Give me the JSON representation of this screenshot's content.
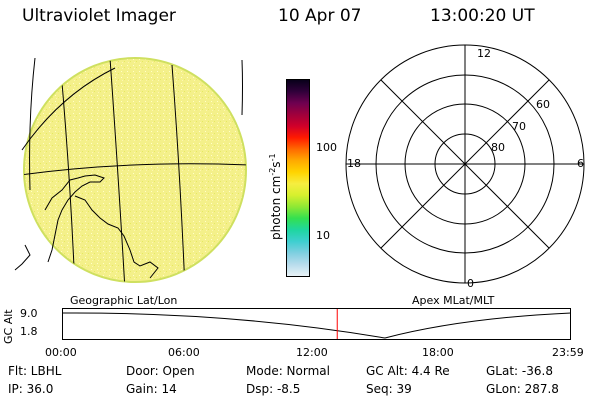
{
  "header": {
    "instrument": "Ultraviolet Imager",
    "date": "10 Apr 07",
    "time": "13:00:20 UT"
  },
  "colorbar": {
    "unit_label": "photon cm",
    "unit_sup1": "-2",
    "unit_mid": "s",
    "unit_sup2": "-1",
    "tick_100": "100",
    "tick_10": "10",
    "colors": [
      "#e8f2f6",
      "#b8dcec",
      "#7fcfe0",
      "#3ecfd0",
      "#1fd6a0",
      "#34e050",
      "#8ee834",
      "#d6f02e",
      "#f6ee40",
      "#ffd400",
      "#ffaa00",
      "#ff6a00",
      "#ff1a00",
      "#d0002a",
      "#a0003c",
      "#6e0050",
      "#30003a",
      "#08001a"
    ]
  },
  "geo_panel": {
    "title": "Geographic Lat/Lon",
    "image_color": "#f2f090"
  },
  "polar_panel": {
    "title": "Apex MLat/MLT",
    "mlt_12": "12",
    "mlt_18": "18",
    "mlt_6": "6",
    "mlt_0": "0",
    "lat_60": "60",
    "lat_70": "70",
    "lat_80": "80"
  },
  "altitude_plot": {
    "ylabel": "GC Alt",
    "y_top": "9.0",
    "y_bottom": "1.8",
    "x_ticks": [
      "00:00",
      "06:00",
      "12:00",
      "18:00",
      "23:59"
    ],
    "current_time_fraction": 0.5418,
    "marker_color": "#ff0000"
  },
  "info": {
    "filter": "Flt: LBHL",
    "ip": "IP: 36.0",
    "door": "Door: Open",
    "gain": "Gain: 14",
    "mode": "Mode: Normal",
    "dsp": "Dsp:   -8.5",
    "gc_alt": "GC Alt: 4.4 Re",
    "seq": "Seq: 39",
    "glat": "GLat:  -36.8",
    "glon": "GLon: 287.8"
  }
}
